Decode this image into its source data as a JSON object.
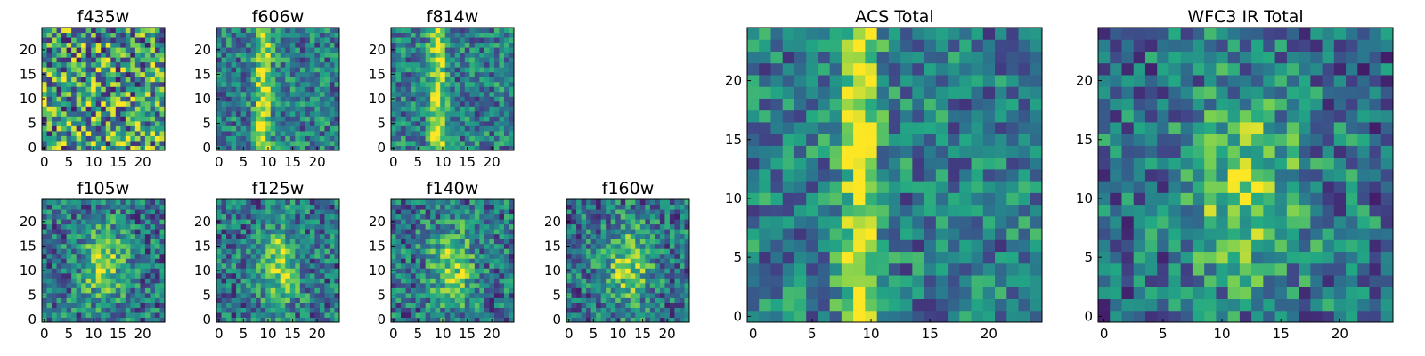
{
  "chart_data": [
    {
      "type": "heatmap",
      "title": "f435w",
      "xlim": [
        0,
        24
      ],
      "ylim": [
        0,
        24
      ],
      "xticks": [
        0,
        5,
        10,
        15,
        20
      ],
      "yticks": [
        0,
        5,
        10,
        15,
        20
      ],
      "pattern": "noise",
      "colormap": "viridis"
    },
    {
      "type": "heatmap",
      "title": "f606w",
      "xlim": [
        0,
        24
      ],
      "ylim": [
        0,
        24
      ],
      "xticks": [
        0,
        5,
        10,
        15,
        20
      ],
      "yticks": [
        0,
        5,
        10,
        15,
        20
      ],
      "pattern": "vertical-stripe",
      "colormap": "viridis"
    },
    {
      "type": "heatmap",
      "title": "f814w",
      "xlim": [
        0,
        24
      ],
      "ylim": [
        0,
        24
      ],
      "xticks": [
        0,
        5,
        10,
        15,
        20
      ],
      "yticks": [
        0,
        5,
        10,
        15,
        20
      ],
      "pattern": "vertical-stripe",
      "colormap": "viridis"
    },
    {
      "type": "heatmap",
      "title": "f105w",
      "xlim": [
        0,
        24
      ],
      "ylim": [
        0,
        24
      ],
      "xticks": [
        0,
        5,
        10,
        15,
        20
      ],
      "yticks": [
        0,
        5,
        10,
        15,
        20
      ],
      "pattern": "diffuse",
      "colormap": "viridis"
    },
    {
      "type": "heatmap",
      "title": "f125w",
      "xlim": [
        0,
        24
      ],
      "ylim": [
        0,
        24
      ],
      "xticks": [
        0,
        5,
        10,
        15,
        20
      ],
      "yticks": [
        0,
        5,
        10,
        15,
        20
      ],
      "pattern": "diffuse",
      "colormap": "viridis"
    },
    {
      "type": "heatmap",
      "title": "f140w",
      "xlim": [
        0,
        24
      ],
      "ylim": [
        0,
        24
      ],
      "xticks": [
        0,
        5,
        10,
        15,
        20
      ],
      "yticks": [
        0,
        5,
        10,
        15,
        20
      ],
      "pattern": "diffuse",
      "colormap": "viridis"
    },
    {
      "type": "heatmap",
      "title": "f160w",
      "xlim": [
        0,
        24
      ],
      "ylim": [
        0,
        24
      ],
      "xticks": [
        0,
        5,
        10,
        15,
        20
      ],
      "yticks": [
        0,
        5,
        10,
        15,
        20
      ],
      "pattern": "diffuse",
      "colormap": "viridis"
    },
    {
      "type": "heatmap",
      "title": "ACS Total",
      "xlim": [
        0,
        24
      ],
      "ylim": [
        0,
        24
      ],
      "xticks": [
        0,
        5,
        10,
        15,
        20
      ],
      "yticks": [
        0,
        5,
        10,
        15,
        20
      ],
      "pattern": "vertical-stripe",
      "colormap": "viridis"
    },
    {
      "type": "heatmap",
      "title": "WFC3 IR Total",
      "xlim": [
        0,
        24
      ],
      "ylim": [
        0,
        24
      ],
      "xticks": [
        0,
        5,
        10,
        15,
        20
      ],
      "yticks": [
        0,
        5,
        10,
        15,
        20
      ],
      "pattern": "diffuse",
      "colormap": "viridis"
    }
  ],
  "colors": {
    "cmap": [
      "#440154",
      "#414487",
      "#2a788e",
      "#22a884",
      "#7ad151",
      "#fde725"
    ]
  }
}
